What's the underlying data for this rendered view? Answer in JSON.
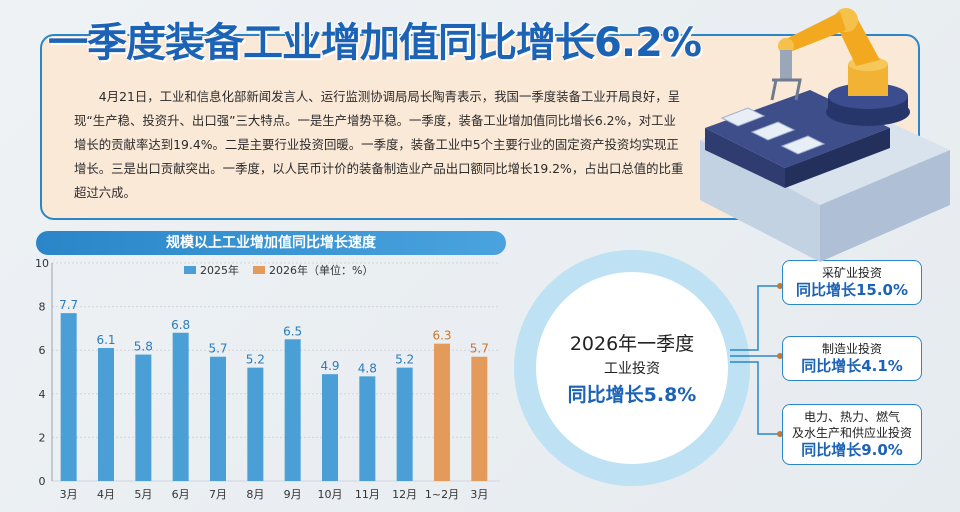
{
  "headline": "一季度装备工业增加值同比增长6.2%",
  "paragraph": "4月21日，工业和信息化部新闻发言人、运行监测协调局局长陶青表示，我国一季度装备工业开局良好，呈现“生产稳、投资升、出口强”三大特点。一是生产增势平稳。一季度，装备工业增加值同比增长6.2%，对工业增长的贡献率达到19.4%。二是主要行业投资回暖。一季度，装备工业中5个主要行业的固定资产投资均实现正增长。三是出口贡献突出。一季度，以人民币计价的装备制造业产品出口额同比增长19.2%，占出口总值的比重超过六成。",
  "colors": {
    "accent": "#1c63b6",
    "bar2025": "#4a9fd6",
    "bar2026": "#e39a5a",
    "box_border": "#2a86c8"
  },
  "chart_data": {
    "type": "bar",
    "title": "规模以上工业增加值同比增长速度",
    "legend": [
      "2025年",
      "2026年（单位：%）"
    ],
    "categories": [
      "3月",
      "4月",
      "5月",
      "6月",
      "7月",
      "8月",
      "9月",
      "10月",
      "11月",
      "12月",
      "1~2月",
      "3月"
    ],
    "values": [
      7.7,
      6.1,
      5.8,
      6.8,
      5.7,
      5.2,
      6.5,
      4.9,
      4.8,
      5.2,
      6.3,
      5.7
    ],
    "value_labels": [
      "7.7",
      "6.1",
      "5.8",
      "6.8",
      "5.7",
      "5.2",
      "6.5",
      "4.9",
      "4.8",
      "5.2",
      "6.3",
      "5.7"
    ],
    "series_of_bar": [
      "2025年",
      "2025年",
      "2025年",
      "2025年",
      "2025年",
      "2025年",
      "2025年",
      "2025年",
      "2025年",
      "2025年",
      "2026年",
      "2026年"
    ],
    "yticks": [
      "0",
      "2",
      "4",
      "6",
      "8",
      "10"
    ],
    "ylim": [
      0,
      10
    ],
    "grid": true
  },
  "circle": {
    "title": "2026年一季度",
    "subtitle": "工业投资",
    "value": "同比增长5.8%"
  },
  "side_boxes": [
    {
      "label": "采矿业投资",
      "value": "同比增长15.0%"
    },
    {
      "label": "制造业投资",
      "value": "同比增长4.1%"
    },
    {
      "label": "电力、热力、燃气\n及水生产和供应业投资",
      "value": "同比增长9.0%"
    }
  ]
}
